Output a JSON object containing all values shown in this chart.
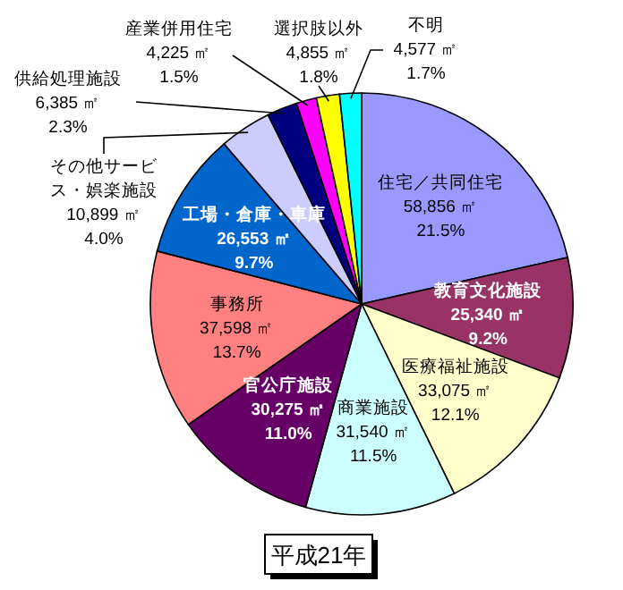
{
  "chart_data": {
    "type": "pie",
    "title": "平成21年",
    "categories": [
      "住宅／共同住宅",
      "教育文化施設",
      "医療福祉施設",
      "商業施設",
      "官公庁施設",
      "事務所",
      "工場・倉庫・車庫",
      "その他サービス・娯楽施設",
      "供給処理施設",
      "産業併用住宅",
      "選択肢以外",
      "不明"
    ],
    "values": [
      58856,
      25340,
      33075,
      31540,
      30275,
      37598,
      26553,
      10899,
      6385,
      4225,
      4855,
      4577
    ],
    "value_labels": [
      "58,856 ㎡\n21.5%",
      "25,340 ㎡\n9.2%",
      "33,075 ㎡\n12.1%",
      "31,540 ㎡\n11.5%",
      "30,275 ㎡\n11.0%",
      "37,598 ㎡\n13.7%",
      "26,553 ㎡\n9.7%",
      "10,899 ㎡\n4.0%",
      "6,385 ㎡\n2.3%",
      "4,225 ㎡\n1.5%",
      "4,855 ㎡\n1.8%",
      "4,577 ㎡\n1.7%"
    ],
    "colors": [
      "#9999ff",
      "#993366",
      "#ffffcc",
      "#ccffff",
      "#660066",
      "#ff8080",
      "#0066cc",
      "#ccccff",
      "#000080",
      "#ff00ff",
      "#ffff00",
      "#00ffff"
    ]
  }
}
